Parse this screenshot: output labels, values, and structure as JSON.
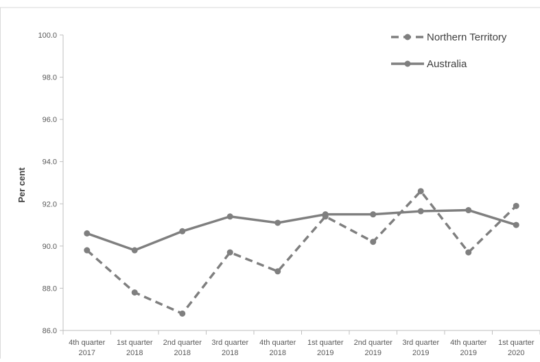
{
  "chart_data": {
    "type": "line",
    "title": "",
    "xlabel": "",
    "ylabel": "Per cent",
    "ylim": [
      86.0,
      100.0
    ],
    "yticks": [
      "86.0",
      "88.0",
      "90.0",
      "92.0",
      "94.0",
      "96.0",
      "98.0",
      "100.0"
    ],
    "categories": [
      [
        "4th quarter",
        "2017"
      ],
      [
        "1st quarter",
        "2018"
      ],
      [
        "2nd quarter",
        "2018"
      ],
      [
        "3rd quarter",
        "2018"
      ],
      [
        "4th quarter",
        "2018"
      ],
      [
        "1st quarter",
        "2019"
      ],
      [
        "2nd quarter",
        "2019"
      ],
      [
        "3rd quarter",
        "2019"
      ],
      [
        "4th quarter",
        "2019"
      ],
      [
        "1st quarter",
        "2020"
      ]
    ],
    "series": [
      {
        "name": "Northern Territory",
        "style": "dashed",
        "color": "#7f7f7f",
        "values": [
          89.8,
          87.8,
          86.8,
          89.7,
          88.8,
          91.4,
          90.2,
          92.6,
          89.7,
          91.9
        ]
      },
      {
        "name": "Australia",
        "style": "solid",
        "color": "#7f7f7f",
        "values": [
          90.6,
          89.8,
          90.7,
          91.4,
          91.1,
          91.5,
          91.5,
          91.65,
          91.7,
          91.0
        ]
      }
    ],
    "grid": false,
    "legend_position": "top-right"
  }
}
